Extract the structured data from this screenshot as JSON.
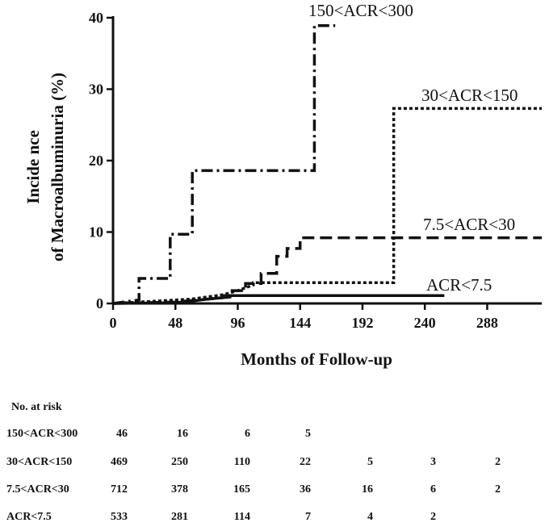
{
  "chart_data": {
    "type": "line",
    "step": true,
    "xlabel": "Months of Follow-up",
    "ylabel_lines": [
      "Incide nce",
      "of Macroalbuminuria (%)"
    ],
    "xlim": [
      0,
      330
    ],
    "ylim": [
      0,
      40
    ],
    "xticks": [
      0,
      48,
      96,
      144,
      192,
      240,
      288
    ],
    "yticks": [
      0,
      10,
      20,
      30,
      40
    ],
    "grid": false,
    "legend": "inline labels",
    "series": [
      {
        "name": "150<ACR<300",
        "style": "dash-dot",
        "x": [
          0,
          20,
          20,
          44,
          44,
          61,
          61,
          155,
          155,
          171
        ],
        "y": [
          0,
          0.5,
          3.5,
          3.5,
          9.7,
          9.7,
          18.6,
          18.6,
          38.9,
          38.9
        ]
      },
      {
        "name": "30<ACR<150",
        "style": "dotted",
        "x": [
          0,
          60,
          84,
          96,
          108,
          108,
          216,
          216,
          330
        ],
        "y": [
          0,
          0.6,
          1.2,
          1.8,
          2.6,
          2.9,
          2.9,
          27.3,
          27.3
        ]
      },
      {
        "name": "7.5<ACR<30",
        "style": "dashed",
        "x": [
          0,
          48,
          72,
          90,
          90,
          102,
          102,
          114,
          114,
          126,
          126,
          134,
          134,
          144,
          144,
          330
        ],
        "y": [
          0,
          0.2,
          0.6,
          0.9,
          1.8,
          1.8,
          2.8,
          2.8,
          4.2,
          4.2,
          6.6,
          6.6,
          7.7,
          7.7,
          9.2,
          9.2
        ]
      },
      {
        "name": "ACR<7.5",
        "style": "solid",
        "x": [
          0,
          48,
          60,
          72,
          84,
          84,
          255
        ],
        "y": [
          0,
          0.1,
          0.3,
          0.6,
          0.8,
          1.1,
          1.1
        ]
      }
    ]
  },
  "risk_table": {
    "title": "No. at risk",
    "rows": [
      {
        "label": "150<ACR<300",
        "values": [
          "46",
          "16",
          "6",
          "5"
        ]
      },
      {
        "label": "30<ACR<150",
        "values": [
          "469",
          "250",
          "110",
          "22",
          "5",
          "3",
          "2"
        ]
      },
      {
        "label": "7.5<ACR<30",
        "values": [
          "712",
          "378",
          "165",
          "36",
          "16",
          "6",
          "2"
        ]
      },
      {
        "label": "ACR<7.5",
        "values": [
          "533",
          "281",
          "114",
          "7",
          "4",
          "2"
        ]
      }
    ]
  }
}
